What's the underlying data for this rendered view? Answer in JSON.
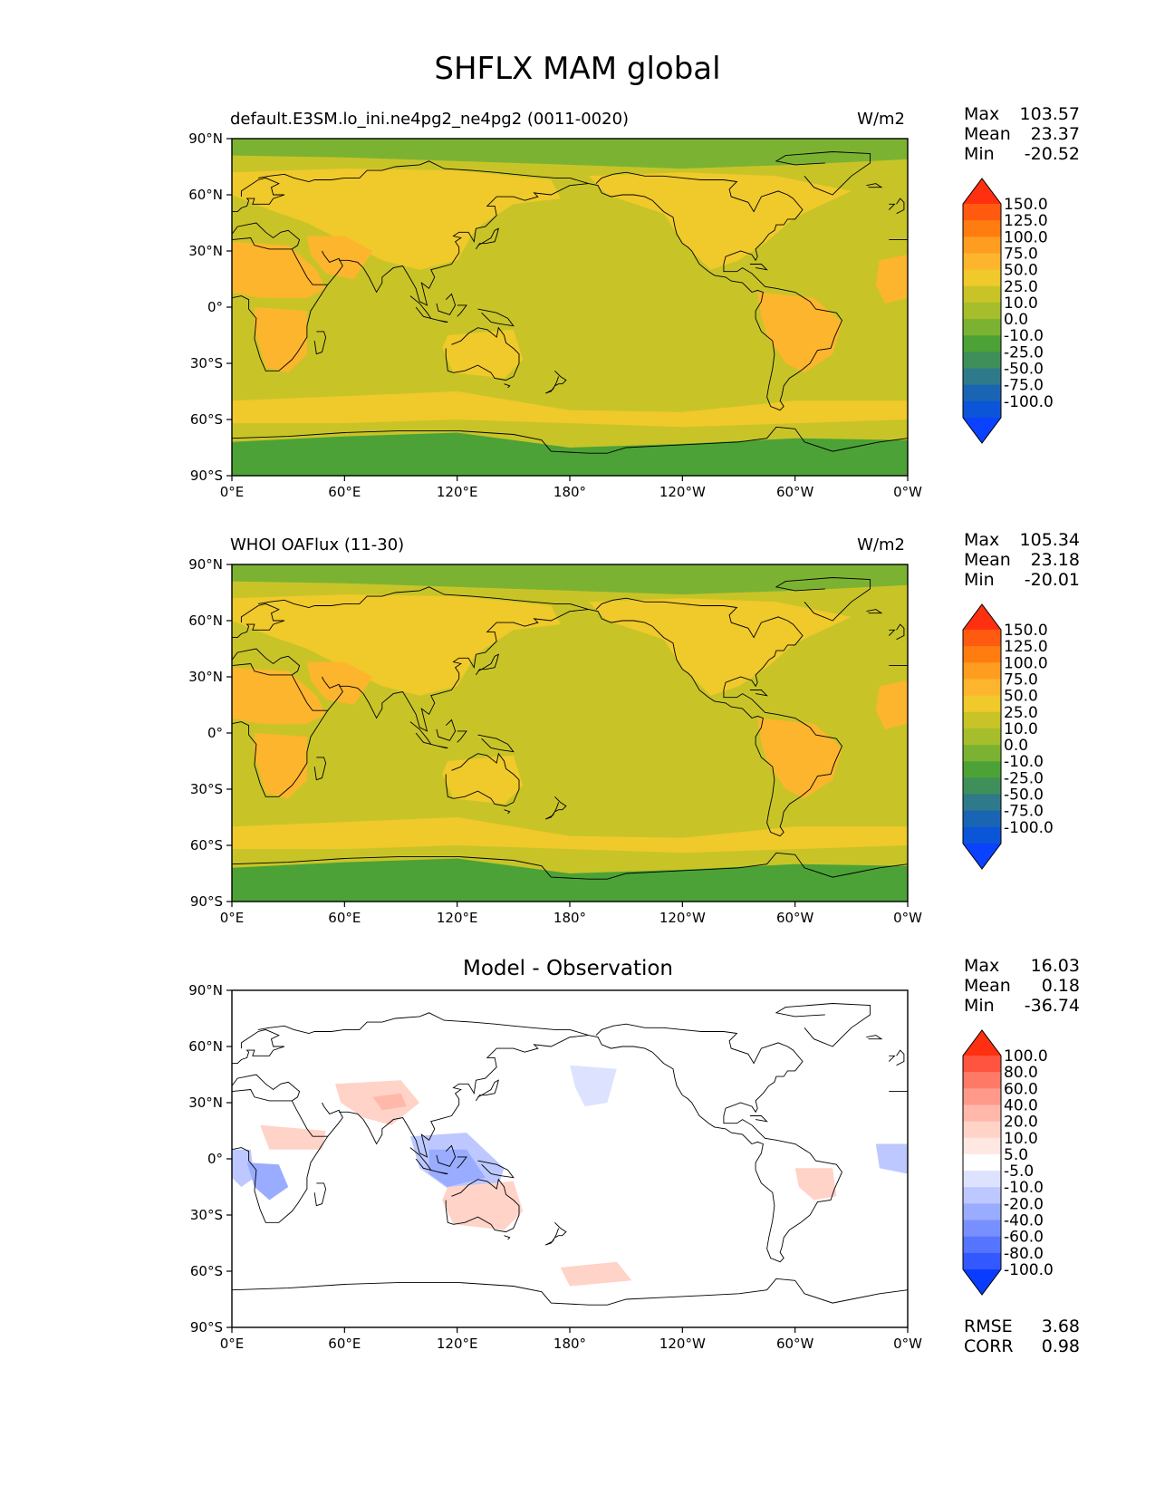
{
  "title": "SHFLX MAM global",
  "chart_data": [
    {
      "type": "heatmap",
      "title_left": "default.E3SM.lo_ini.ne4pg2_ne4pg2 (0011-0020)",
      "title_right": "W/m2",
      "title_center": "",
      "stats": {
        "max_label": "Max",
        "max": "103.57",
        "mean_label": "Mean",
        "mean": "23.37",
        "min_label": "Min",
        "min": "-20.52"
      },
      "xticks": [
        "0°E",
        "60°E",
        "120°E",
        "180°",
        "120°W",
        "60°W",
        "0°W"
      ],
      "yticks": [
        "90°N",
        "60°N",
        "30°N",
        "0°",
        "30°S",
        "60°S",
        "90°S"
      ],
      "xlim": [
        0,
        360
      ],
      "ylim": [
        -90,
        90
      ],
      "colorbar": {
        "levels": [
          "150.0",
          "125.0",
          "100.0",
          "75.0",
          "50.0",
          "25.0",
          "10.0",
          "0.0",
          "-10.0",
          "-25.0",
          "-50.0",
          "-75.0",
          "-100.0"
        ],
        "colors": [
          "#ff3010",
          "#ff5a10",
          "#ff7d10",
          "#ff9d20",
          "#fdb52d",
          "#f0c92b",
          "#c8c428",
          "#a6be2b",
          "#7cb232",
          "#4ca236",
          "#3f8f5a",
          "#2e7a8a",
          "#1a64b4",
          "#0b55d8",
          "#0a42ff"
        ]
      },
      "regions": [
        {
          "name": "background",
          "color": "#c8c428"
        },
        {
          "name": "south-pole",
          "color": "#4ca236"
        },
        {
          "name": "arctic",
          "color": "#7cb232"
        },
        {
          "name": "eurasia",
          "color": "#f0c92b"
        },
        {
          "name": "north-america",
          "color": "#f0c92b"
        },
        {
          "name": "north-africa",
          "color": "#fdb52d"
        },
        {
          "name": "middle-east",
          "color": "#fdb52d"
        },
        {
          "name": "southern-africa",
          "color": "#fdb52d"
        },
        {
          "name": "australia",
          "color": "#f0c92b"
        },
        {
          "name": "south-america",
          "color": "#fdb52d"
        },
        {
          "name": "southern-ocean",
          "color": "#f0c92b"
        },
        {
          "name": "tropical-atlantic",
          "color": "#fdb52d"
        }
      ]
    },
    {
      "type": "heatmap",
      "title_left": "WHOI OAFlux (11-30)",
      "title_right": "W/m2",
      "title_center": "",
      "stats": {
        "max_label": "Max",
        "max": "105.34",
        "mean_label": "Mean",
        "mean": "23.18",
        "min_label": "Min",
        "min": "-20.01"
      },
      "xticks": [
        "0°E",
        "60°E",
        "120°E",
        "180°",
        "120°W",
        "60°W",
        "0°W"
      ],
      "yticks": [
        "90°N",
        "60°N",
        "30°N",
        "0°",
        "30°S",
        "60°S",
        "90°S"
      ],
      "xlim": [
        0,
        360
      ],
      "ylim": [
        -90,
        90
      ],
      "colorbar": {
        "levels": [
          "150.0",
          "125.0",
          "100.0",
          "75.0",
          "50.0",
          "25.0",
          "10.0",
          "0.0",
          "-10.0",
          "-25.0",
          "-50.0",
          "-75.0",
          "-100.0"
        ],
        "colors": [
          "#ff3010",
          "#ff5a10",
          "#ff7d10",
          "#ff9d20",
          "#fdb52d",
          "#f0c92b",
          "#c8c428",
          "#a6be2b",
          "#7cb232",
          "#4ca236",
          "#3f8f5a",
          "#2e7a8a",
          "#1a64b4",
          "#0b55d8",
          "#0a42ff"
        ]
      },
      "regions": [
        {
          "name": "background",
          "color": "#c8c428"
        },
        {
          "name": "south-pole",
          "color": "#4ca236"
        },
        {
          "name": "arctic",
          "color": "#7cb232"
        },
        {
          "name": "eurasia",
          "color": "#f0c92b"
        },
        {
          "name": "north-america",
          "color": "#f0c92b"
        },
        {
          "name": "north-africa",
          "color": "#fdb52d"
        },
        {
          "name": "middle-east",
          "color": "#fdb52d"
        },
        {
          "name": "southern-africa",
          "color": "#fdb52d"
        },
        {
          "name": "australia",
          "color": "#f0c92b"
        },
        {
          "name": "south-america",
          "color": "#fdb52d"
        },
        {
          "name": "southern-ocean",
          "color": "#f0c92b"
        },
        {
          "name": "tropical-atlantic",
          "color": "#fdb52d"
        }
      ]
    },
    {
      "type": "heatmap",
      "title_left": "",
      "title_right": "",
      "title_center": "Model - Observation",
      "stats": {
        "max_label": "Max",
        "max": "16.03",
        "mean_label": "Mean",
        "mean": "0.18",
        "min_label": "Min",
        "min": "-36.74"
      },
      "xticks": [
        "0°E",
        "60°E",
        "120°E",
        "180°",
        "120°W",
        "60°W",
        "0°W"
      ],
      "yticks": [
        "90°N",
        "60°N",
        "30°N",
        "0°",
        "30°S",
        "60°S",
        "90°S"
      ],
      "xlim": [
        0,
        360
      ],
      "ylim": [
        -90,
        90
      ],
      "colorbar": {
        "levels": [
          "100.0",
          "80.0",
          "60.0",
          "40.0",
          "20.0",
          "10.0",
          "5.0",
          "-5.0",
          "-10.0",
          "-20.0",
          "-40.0",
          "-60.0",
          "-80.0",
          "-100.0"
        ],
        "colors": [
          "#ff3010",
          "#ff5540",
          "#ff7a66",
          "#ff9a8a",
          "#ffb8aa",
          "#ffd3c8",
          "#ffe8e2",
          "#ffffff",
          "#dde3ff",
          "#bcc8ff",
          "#9aacff",
          "#7890ff",
          "#5574ff",
          "#3358ff",
          "#0a3cff"
        ]
      },
      "regions": [
        {
          "name": "background",
          "color": "#ffffff"
        },
        {
          "name": "north-pacific",
          "color": "#dde3ff"
        },
        {
          "name": "central-asia",
          "color": "#ffd3c8"
        },
        {
          "name": "tibet",
          "color": "#ffb8aa"
        },
        {
          "name": "west-africa-coast",
          "color": "#bcc8ff"
        },
        {
          "name": "congo",
          "color": "#9aacff"
        },
        {
          "name": "maritime-continent",
          "color": "#bcc8ff"
        },
        {
          "name": "maritime-core",
          "color": "#9aacff"
        },
        {
          "name": "australia",
          "color": "#ffd3c8"
        },
        {
          "name": "brazil",
          "color": "#ffd3c8"
        },
        {
          "name": "east-atlantic",
          "color": "#bcc8ff"
        },
        {
          "name": "southern-pacific",
          "color": "#ffd3c8"
        },
        {
          "name": "sahel",
          "color": "#ffd3c8"
        }
      ]
    }
  ],
  "diff_extra": {
    "rmse_label": "RMSE",
    "rmse": "3.68",
    "corr_label": "CORR",
    "corr": "0.98"
  }
}
